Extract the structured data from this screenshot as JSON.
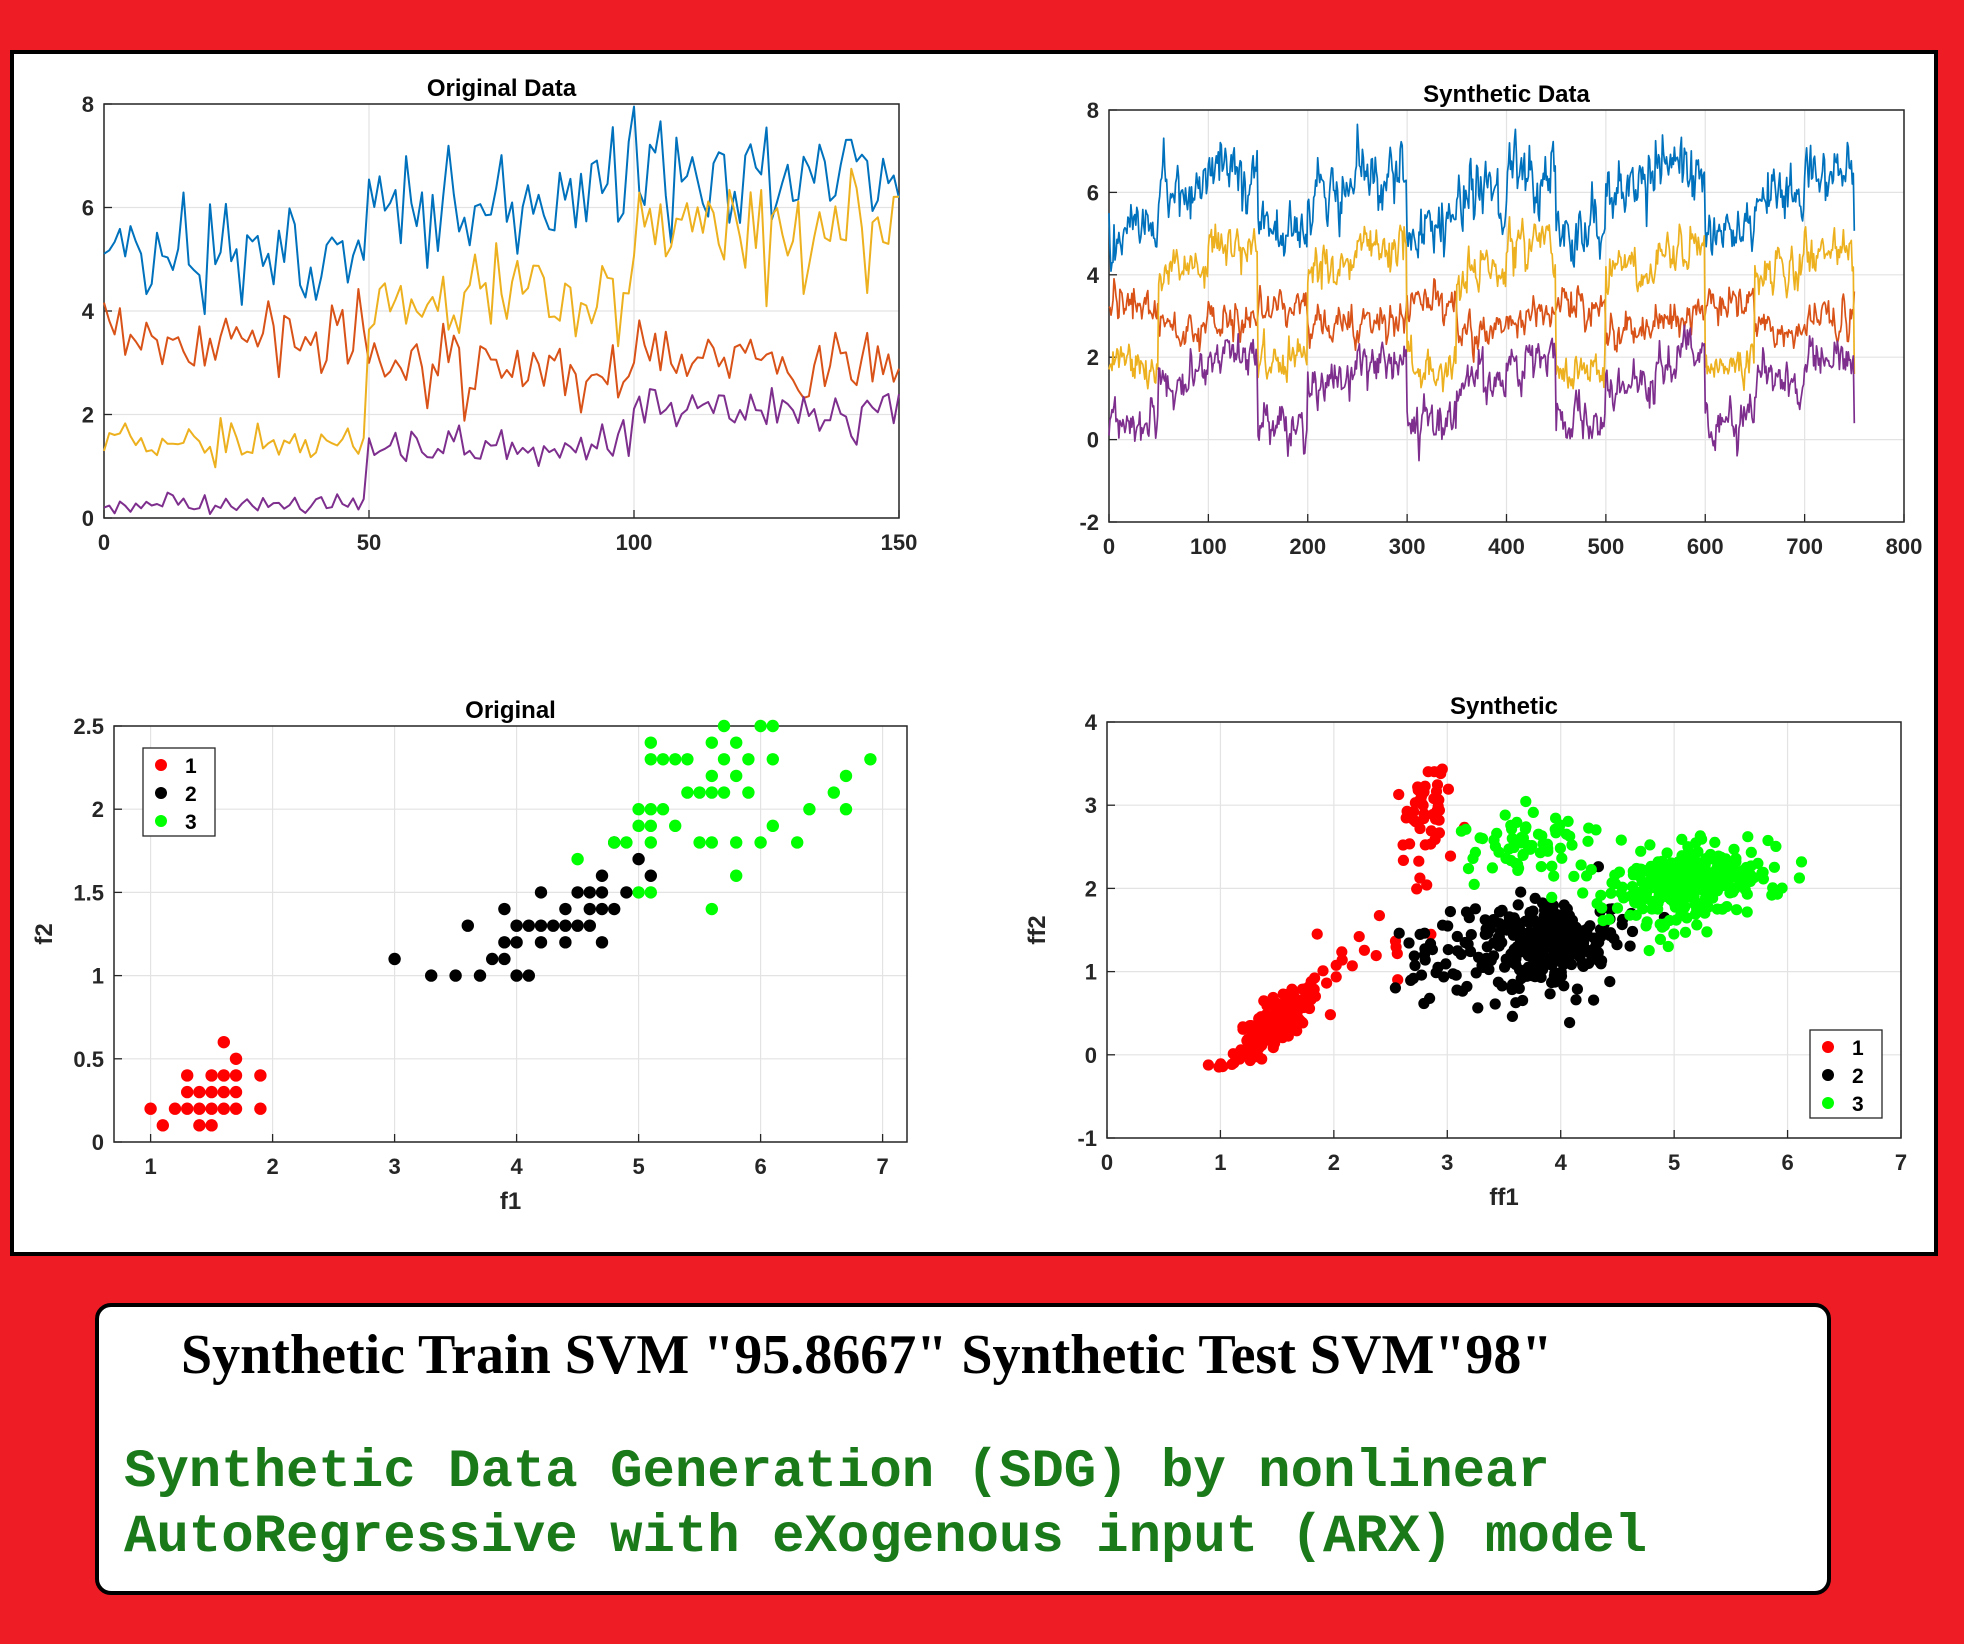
{
  "caption": {
    "title": "Synthetic Train SVM \"95.8667\" Synthetic Test SVM\"98\"",
    "line1": "Synthetic Data Generation (SDG) by nonlinear",
    "line2": "AutoRegressive with eXogenous input (ARX) model"
  },
  "colors": {
    "background": "#ee1c25",
    "series": [
      "#0072bd",
      "#d95319",
      "#edb120",
      "#7e2f8e"
    ],
    "class1": "#ff0000",
    "class2": "#000000",
    "class3": "#00ff00",
    "caption_green": "#1a7a1a"
  },
  "chart_data": [
    {
      "id": "original-data",
      "type": "line",
      "title": "Original Data",
      "xlim": [
        0,
        150
      ],
      "ylim": [
        0,
        8
      ],
      "xticks": [
        0,
        50,
        100,
        150
      ],
      "yticks": [
        0,
        2,
        4,
        6,
        8
      ],
      "grid": true,
      "series": [
        {
          "color": "#0072bd",
          "segments": [
            {
              "from": 0,
              "to": 50,
              "mean": 5.0,
              "amp": 0.45
            },
            {
              "from": 50,
              "to": 100,
              "mean": 5.9,
              "amp": 0.6
            },
            {
              "from": 100,
              "to": 150,
              "mean": 6.6,
              "amp": 0.65
            }
          ]
        },
        {
          "color": "#d95319",
          "segments": [
            {
              "from": 0,
              "to": 50,
              "mean": 3.4,
              "amp": 0.4
            },
            {
              "from": 50,
              "to": 100,
              "mean": 2.8,
              "amp": 0.35
            },
            {
              "from": 100,
              "to": 150,
              "mean": 2.95,
              "amp": 0.35
            }
          ]
        },
        {
          "color": "#edb120",
          "segments": [
            {
              "from": 0,
              "to": 50,
              "mean": 1.45,
              "amp": 0.18
            },
            {
              "from": 50,
              "to": 100,
              "mean": 4.25,
              "amp": 0.45
            },
            {
              "from": 100,
              "to": 150,
              "mean": 5.5,
              "amp": 0.55
            }
          ]
        },
        {
          "color": "#7e2f8e",
          "segments": [
            {
              "from": 0,
              "to": 50,
              "mean": 0.25,
              "amp": 0.1
            },
            {
              "from": 50,
              "to": 100,
              "mean": 1.35,
              "amp": 0.2
            },
            {
              "from": 100,
              "to": 150,
              "mean": 2.05,
              "amp": 0.28
            }
          ]
        }
      ]
    },
    {
      "id": "synthetic-data",
      "type": "line",
      "title": "Synthetic Data",
      "xlim": [
        0,
        800
      ],
      "ylim": [
        -2,
        8
      ],
      "xticks": [
        0,
        100,
        200,
        300,
        400,
        500,
        600,
        700,
        800
      ],
      "yticks": [
        -2,
        0,
        2,
        4,
        6,
        8
      ],
      "grid": true,
      "n_points": 750,
      "cycle_length": 150,
      "series": [
        {
          "color": "#0072bd",
          "segments": [
            {
              "from": 0,
              "to": 50,
              "mean": 5.1,
              "amp": 0.55
            },
            {
              "from": 50,
              "to": 100,
              "mean": 6.0,
              "amp": 0.65
            },
            {
              "from": 100,
              "to": 150,
              "mean": 6.5,
              "amp": 0.7
            }
          ]
        },
        {
          "color": "#d95319",
          "segments": [
            {
              "from": 0,
              "to": 50,
              "mean": 3.3,
              "amp": 0.35
            },
            {
              "from": 50,
              "to": 100,
              "mean": 2.7,
              "amp": 0.35
            },
            {
              "from": 100,
              "to": 150,
              "mean": 2.9,
              "amp": 0.4
            }
          ]
        },
        {
          "color": "#edb120",
          "segments": [
            {
              "from": 0,
              "to": 50,
              "mean": 1.8,
              "amp": 0.4
            },
            {
              "from": 50,
              "to": 100,
              "mean": 4.1,
              "amp": 0.45
            },
            {
              "from": 100,
              "to": 150,
              "mean": 4.7,
              "amp": 0.5
            }
          ]
        },
        {
          "color": "#7e2f8e",
          "segments": [
            {
              "from": 0,
              "to": 50,
              "mean": 0.4,
              "amp": 0.45
            },
            {
              "from": 50,
              "to": 100,
              "mean": 1.4,
              "amp": 0.45
            },
            {
              "from": 100,
              "to": 150,
              "mean": 2.0,
              "amp": 0.45
            }
          ]
        }
      ]
    },
    {
      "id": "original-scatter",
      "type": "scatter",
      "title": "Original",
      "xlabel": "f1",
      "ylabel": "f2",
      "xlim": [
        0.7,
        7.2
      ],
      "ylim": [
        0,
        2.5
      ],
      "xticks": [
        1,
        2,
        3,
        4,
        5,
        6,
        7
      ],
      "yticks": [
        0,
        0.5,
        1,
        1.5,
        2,
        2.5
      ],
      "grid": true,
      "legend": {
        "position": "top-left",
        "entries": [
          "1",
          "2",
          "3"
        ]
      },
      "series": [
        {
          "name": "1",
          "color": "#ff0000",
          "points": [
            [
              1.0,
              0.2
            ],
            [
              1.1,
              0.1
            ],
            [
              1.2,
              0.2
            ],
            [
              1.3,
              0.2
            ],
            [
              1.3,
              0.3
            ],
            [
              1.3,
              0.4
            ],
            [
              1.4,
              0.1
            ],
            [
              1.4,
              0.2
            ],
            [
              1.4,
              0.3
            ],
            [
              1.5,
              0.1
            ],
            [
              1.5,
              0.2
            ],
            [
              1.5,
              0.3
            ],
            [
              1.5,
              0.4
            ],
            [
              1.6,
              0.2
            ],
            [
              1.6,
              0.3
            ],
            [
              1.6,
              0.4
            ],
            [
              1.6,
              0.6
            ],
            [
              1.7,
              0.2
            ],
            [
              1.7,
              0.3
            ],
            [
              1.7,
              0.4
            ],
            [
              1.7,
              0.5
            ],
            [
              1.9,
              0.2
            ],
            [
              1.9,
              0.4
            ]
          ]
        },
        {
          "name": "2",
          "color": "#000000",
          "points": [
            [
              3.0,
              1.1
            ],
            [
              3.3,
              1.0
            ],
            [
              3.5,
              1.0
            ],
            [
              3.6,
              1.3
            ],
            [
              3.7,
              1.0
            ],
            [
              3.8,
              1.1
            ],
            [
              3.9,
              1.1
            ],
            [
              3.9,
              1.2
            ],
            [
              3.9,
              1.4
            ],
            [
              4.0,
              1.0
            ],
            [
              4.0,
              1.2
            ],
            [
              4.0,
              1.3
            ],
            [
              4.1,
              1.0
            ],
            [
              4.1,
              1.3
            ],
            [
              4.2,
              1.2
            ],
            [
              4.2,
              1.3
            ],
            [
              4.2,
              1.5
            ],
            [
              4.3,
              1.3
            ],
            [
              4.4,
              1.2
            ],
            [
              4.4,
              1.3
            ],
            [
              4.4,
              1.4
            ],
            [
              4.5,
              1.3
            ],
            [
              4.5,
              1.5
            ],
            [
              4.6,
              1.3
            ],
            [
              4.6,
              1.4
            ],
            [
              4.6,
              1.5
            ],
            [
              4.7,
              1.2
            ],
            [
              4.7,
              1.4
            ],
            [
              4.7,
              1.5
            ],
            [
              4.7,
              1.6
            ],
            [
              4.8,
              1.4
            ],
            [
              4.8,
              1.8
            ],
            [
              4.9,
              1.5
            ],
            [
              5.0,
              1.7
            ],
            [
              5.1,
              1.6
            ]
          ]
        },
        {
          "name": "3",
          "color": "#00ff00",
          "points": [
            [
              4.5,
              1.7
            ],
            [
              4.8,
              1.8
            ],
            [
              4.9,
              1.8
            ],
            [
              5.0,
              1.5
            ],
            [
              5.0,
              1.9
            ],
            [
              5.0,
              2.0
            ],
            [
              5.1,
              1.5
            ],
            [
              5.1,
              1.8
            ],
            [
              5.1,
              1.9
            ],
            [
              5.1,
              2.0
            ],
            [
              5.1,
              2.3
            ],
            [
              5.1,
              2.4
            ],
            [
              5.2,
              2.0
            ],
            [
              5.2,
              2.3
            ],
            [
              5.3,
              1.9
            ],
            [
              5.3,
              2.3
            ],
            [
              5.4,
              2.1
            ],
            [
              5.4,
              2.3
            ],
            [
              5.5,
              1.8
            ],
            [
              5.5,
              2.1
            ],
            [
              5.6,
              1.4
            ],
            [
              5.6,
              1.8
            ],
            [
              5.6,
              2.1
            ],
            [
              5.6,
              2.2
            ],
            [
              5.6,
              2.4
            ],
            [
              5.7,
              2.1
            ],
            [
              5.7,
              2.3
            ],
            [
              5.7,
              2.5
            ],
            [
              5.8,
              1.6
            ],
            [
              5.8,
              1.8
            ],
            [
              5.8,
              2.2
            ],
            [
              5.8,
              2.4
            ],
            [
              5.9,
              2.1
            ],
            [
              5.9,
              2.3
            ],
            [
              6.0,
              1.8
            ],
            [
              6.0,
              2.5
            ],
            [
              6.1,
              1.9
            ],
            [
              6.1,
              2.3
            ],
            [
              6.1,
              2.5
            ],
            [
              6.3,
              1.8
            ],
            [
              6.4,
              2.0
            ],
            [
              6.6,
              2.1
            ],
            [
              6.7,
              2.0
            ],
            [
              6.7,
              2.2
            ],
            [
              6.9,
              2.3
            ]
          ]
        }
      ]
    },
    {
      "id": "synthetic-scatter",
      "type": "scatter",
      "title": "Synthetic",
      "xlabel": "ff1",
      "ylabel": "ff2",
      "xlim": [
        0,
        7
      ],
      "ylim": [
        -1,
        4
      ],
      "xticks": [
        0,
        1,
        2,
        3,
        4,
        5,
        6,
        7
      ],
      "yticks": [
        -1,
        0,
        1,
        2,
        3,
        4
      ],
      "grid": true,
      "legend": {
        "position": "bottom-right",
        "entries": [
          "1",
          "2",
          "3"
        ]
      },
      "clusters": [
        {
          "name": "1",
          "color": "#ff0000",
          "n": 180,
          "cx": 1.5,
          "cy": 0.4,
          "sx": 0.18,
          "sy": 0.25,
          "rho": 0.8
        },
        {
          "name": "1",
          "color": "#ff0000",
          "n": 50,
          "cx": 2.8,
          "cy": 2.9,
          "sx": 0.14,
          "sy": 0.35,
          "rho": 0.3
        },
        {
          "name": "1",
          "color": "#ff0000",
          "n": 14,
          "cx": 2.5,
          "cy": 1.4,
          "sx": 0.35,
          "sy": 0.25,
          "rho": 0.4
        },
        {
          "name": "2",
          "color": "#000000",
          "n": 280,
          "cx": 3.85,
          "cy": 1.35,
          "sx": 0.32,
          "sy": 0.28,
          "rho": 0.1
        },
        {
          "name": "2",
          "color": "#000000",
          "n": 30,
          "cx": 2.95,
          "cy": 1.15,
          "sx": 0.2,
          "sy": 0.32,
          "rho": 0.0
        },
        {
          "name": "3",
          "color": "#00ff00",
          "n": 300,
          "cx": 5.1,
          "cy": 2.05,
          "sx": 0.35,
          "sy": 0.25,
          "rho": 0.3
        },
        {
          "name": "3",
          "color": "#00ff00",
          "n": 70,
          "cx": 3.7,
          "cy": 2.5,
          "sx": 0.3,
          "sy": 0.22,
          "rho": 0.0
        }
      ]
    }
  ]
}
